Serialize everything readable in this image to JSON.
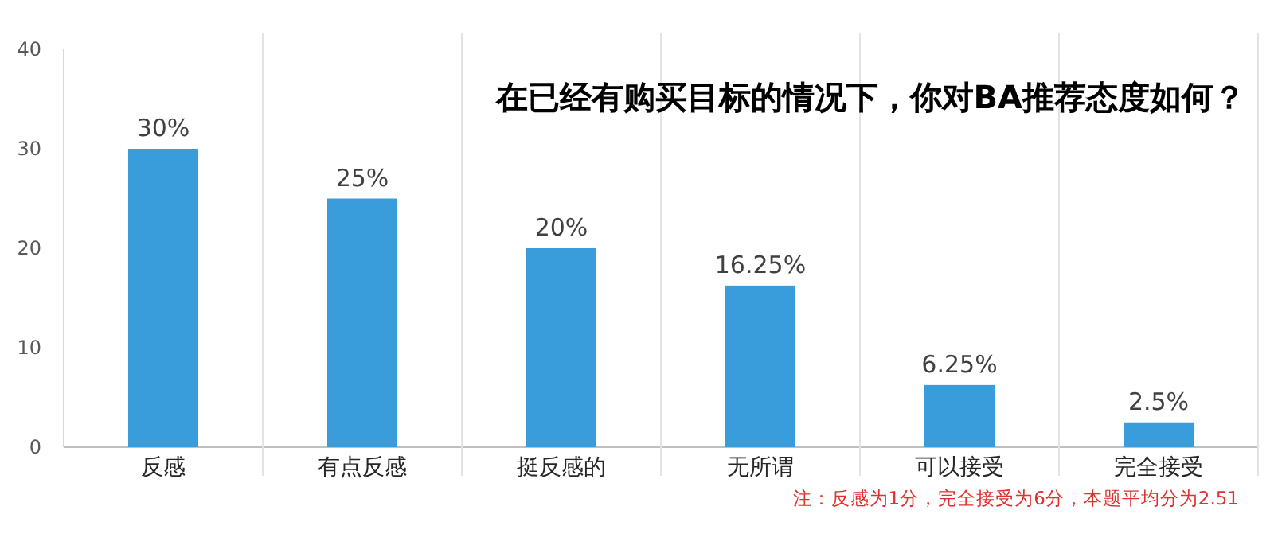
{
  "chart_data": {
    "type": "bar",
    "title": "在已经有购买目标的情况下，你对BA推荐态度如何？",
    "categories": [
      "反感",
      "有点反感",
      "挺反感的",
      "无所谓",
      "可以接受",
      "完全接受"
    ],
    "values": [
      30,
      25,
      20,
      16.25,
      6.25,
      2.5
    ],
    "value_labels": [
      "30%",
      "25%",
      "20%",
      "16.25%",
      "6.25%",
      "2.5%"
    ],
    "color": "#3a9ddb",
    "ylim": [
      0,
      40
    ],
    "yticks": [
      0,
      10,
      20,
      30,
      40
    ],
    "annotations": [
      "注：反感为1分，完全接受为6分，本题平均分为2.51"
    ]
  }
}
